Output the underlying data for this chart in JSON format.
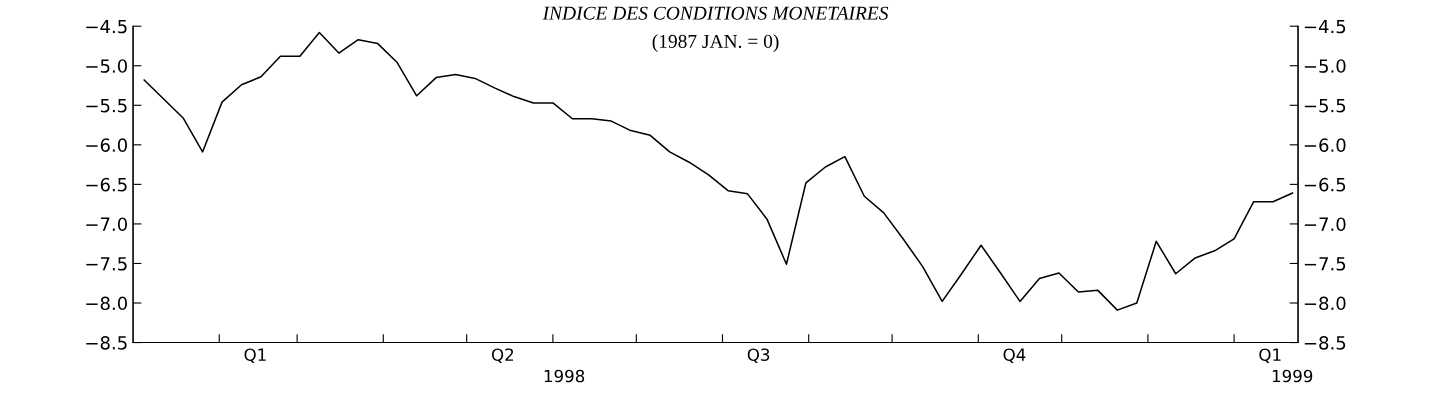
{
  "chart_data": {
    "type": "line",
    "title": "INDICE DES CONDITIONS MONETAIRES",
    "subtitle": "(1987 JAN. = 0)",
    "x": [
      "1998-01-05",
      "1998-01-12",
      "1998-01-19",
      "1998-01-26",
      "1998-02-02",
      "1998-02-09",
      "1998-02-16",
      "1998-02-23",
      "1998-03-02",
      "1998-03-09",
      "1998-03-16",
      "1998-03-23",
      "1998-03-30",
      "1998-04-06",
      "1998-04-13",
      "1998-04-20",
      "1998-04-27",
      "1998-05-04",
      "1998-05-11",
      "1998-05-18",
      "1998-05-25",
      "1998-06-01",
      "1998-06-08",
      "1998-06-15",
      "1998-06-22",
      "1998-06-29",
      "1998-07-06",
      "1998-07-13",
      "1998-07-20",
      "1998-07-27",
      "1998-08-03",
      "1998-08-10",
      "1998-08-17",
      "1998-08-24",
      "1998-08-31",
      "1998-09-07",
      "1998-09-14",
      "1998-09-21",
      "1998-09-28",
      "1998-10-05",
      "1998-10-12",
      "1998-10-19",
      "1998-10-26",
      "1998-11-02",
      "1998-11-09",
      "1998-11-16",
      "1998-11-23",
      "1998-11-30",
      "1998-12-07",
      "1998-12-14",
      "1998-12-21",
      "1998-12-28",
      "1999-01-04",
      "1999-01-11",
      "1999-01-18",
      "1999-01-25",
      "1999-02-01",
      "1999-02-08",
      "1999-02-15",
      "1999-02-22"
    ],
    "series": [
      {
        "color": "#000000",
        "values": [
          -5.18,
          -5.42,
          -5.66,
          -6.09,
          -5.46,
          -5.24,
          -5.14,
          -4.88,
          -4.88,
          -4.58,
          -4.84,
          -4.67,
          -4.72,
          -4.96,
          -5.38,
          -5.15,
          -5.11,
          -5.16,
          -5.28,
          -5.39,
          -5.47,
          -5.47,
          -5.67,
          -5.67,
          -5.7,
          -5.82,
          -5.88,
          -6.09,
          -6.22,
          -6.38,
          -6.58,
          -6.62,
          -6.94,
          -7.51,
          -6.48,
          -6.28,
          -6.15,
          -6.65,
          -6.86,
          -7.19,
          -7.54,
          -7.98,
          -7.63,
          -7.27,
          -7.62,
          -7.98,
          -7.69,
          -7.62,
          -7.86,
          -7.84,
          -8.09,
          -8.0,
          -7.22,
          -7.63,
          -7.43,
          -7.34,
          -7.19,
          -6.72,
          -6.72,
          -6.61
        ]
      }
    ],
    "xlim": [
      "1998-01-01",
      "1999-02-24"
    ],
    "xticks": [
      {
        "value": "1998-02-01",
        "label": null
      },
      {
        "value": "1998-03-01",
        "label": null
      },
      {
        "value": "1998-04-01",
        "label": null
      },
      {
        "value": "1998-05-01",
        "label": null
      },
      {
        "value": "1998-06-01",
        "label": null
      },
      {
        "value": "1998-07-01",
        "label": null
      },
      {
        "value": "1998-08-01",
        "label": null
      },
      {
        "value": "1998-09-01",
        "label": null
      },
      {
        "value": "1998-10-01",
        "label": null
      },
      {
        "value": "1998-11-01",
        "label": null
      },
      {
        "value": "1998-12-01",
        "label": null
      },
      {
        "value": "1999-01-01",
        "label": null
      },
      {
        "value": "1999-02-01",
        "label": null
      },
      {
        "value": "1998-02-14",
        "label": "Q1"
      },
      {
        "value": "1998-05-14",
        "label": "Q2"
      },
      {
        "value": "1998-08-14",
        "label": "Q3"
      },
      {
        "value": "1998-11-14",
        "label": "Q4"
      },
      {
        "value": "1999-02-14",
        "label": "Q1"
      }
    ],
    "annotations": [
      "1998",
      "1999"
    ],
    "ylim": [
      -8.5,
      -4.5
    ],
    "yticks": [
      {
        "value": -8.5,
        "label": "−8.5"
      },
      {
        "value": -8.0,
        "label": "−8.0"
      },
      {
        "value": -7.5,
        "label": "−7.5"
      },
      {
        "value": -7.0,
        "label": "−7.0"
      },
      {
        "value": -6.5,
        "label": "−6.5"
      },
      {
        "value": -6.0,
        "label": "−6.0"
      },
      {
        "value": -5.5,
        "label": "−5.5"
      },
      {
        "value": -5.0,
        "label": "−5.0"
      },
      {
        "value": -4.5,
        "label": "−4.5"
      }
    ],
    "y2lim": [
      -8.5,
      -4.5
    ],
    "y2ticks": [
      {
        "value": -8.5,
        "label": "−8.5"
      },
      {
        "value": -8.0,
        "label": "−8.0"
      },
      {
        "value": -7.5,
        "label": "−7.5"
      },
      {
        "value": -7.0,
        "label": "−7.0"
      },
      {
        "value": -6.5,
        "label": "−6.5"
      },
      {
        "value": -6.0,
        "label": "−6.0"
      },
      {
        "value": -5.5,
        "label": "−5.5"
      },
      {
        "value": -5.0,
        "label": "−5.0"
      },
      {
        "value": -4.5,
        "label": "−4.5"
      }
    ],
    "marker": "none",
    "line_style": "solid"
  }
}
